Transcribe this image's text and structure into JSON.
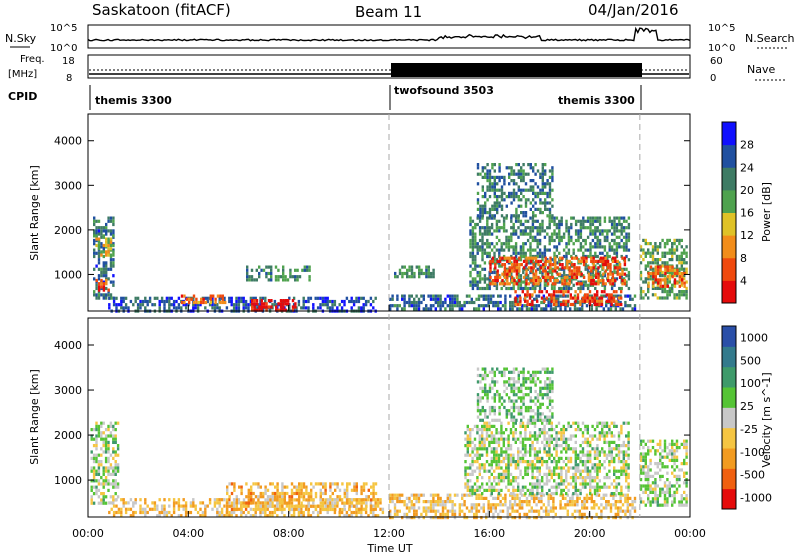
{
  "header": {
    "left": "Saskatoon (fitACF)",
    "center": "Beam 11",
    "right": "04/Jan/2016"
  },
  "top_panels": {
    "nsky_label": "N.Sky",
    "nsky_ticks": [
      "10^5",
      "10^0"
    ],
    "nsearch_label": "N.Search",
    "nsearch_ticks": [
      "10^5",
      "10^0"
    ],
    "freq_label": "Freq.",
    "freq_unit": "[MHz]",
    "freq_ticks": [
      "18",
      "8"
    ],
    "nave_label": "Nave",
    "nave_ticks": [
      "60",
      "0"
    ],
    "cpid_label": "CPID",
    "cpid_segments": [
      {
        "name": "themis 3300",
        "start_hour": 0
      },
      {
        "name": "twofsound 3503",
        "start_hour": 12
      },
      {
        "name": "themis 3300",
        "start_hour": 22
      }
    ]
  },
  "chart_data": [
    {
      "type": "heatmap",
      "panel": "power",
      "ylabel": "Slant Range [km]",
      "yticks": [
        "1000",
        "2000",
        "3000",
        "4000"
      ],
      "ylim": [
        180,
        4600
      ],
      "xlim": [
        0,
        24
      ],
      "colorbar_label": "Power [dB]",
      "colorbar_ticks": [
        "4",
        "8",
        "12",
        "16",
        "20",
        "24",
        "28"
      ],
      "colorbar_range": [
        0,
        30
      ],
      "colors": [
        "#1010ff",
        "#2050a0",
        "#3e7b64",
        "#4fa24e",
        "#dfc227",
        "#f28d1a",
        "#f0490d",
        "#e50b0b"
      ],
      "regions": [
        {
          "t0": 0.2,
          "t1": 1.0,
          "r0": 500,
          "r1": 2300,
          "level": 0.25
        },
        {
          "t0": 0.2,
          "t1": 1.0,
          "r0": 1400,
          "r1": 1900,
          "level": 0.55
        },
        {
          "t0": 0.3,
          "t1": 0.8,
          "r0": 650,
          "r1": 900,
          "level": 0.85
        },
        {
          "t0": 0.8,
          "t1": 11.5,
          "r0": 200,
          "r1": 500,
          "level": 0.2
        },
        {
          "t0": 6.5,
          "t1": 8.3,
          "r0": 200,
          "r1": 450,
          "level": 0.95
        },
        {
          "t0": 6.3,
          "t1": 8.8,
          "r0": 850,
          "r1": 1200,
          "level": 0.35
        },
        {
          "t0": 3.7,
          "t1": 5.5,
          "r0": 350,
          "r1": 550,
          "level": 0.75
        },
        {
          "t0": 12.2,
          "t1": 13.8,
          "r0": 950,
          "r1": 1200,
          "level": 0.35
        },
        {
          "t0": 12.0,
          "t1": 21.8,
          "r0": 200,
          "r1": 550,
          "level": 0.25
        },
        {
          "t0": 15.2,
          "t1": 21.6,
          "r0": 700,
          "r1": 2300,
          "level": 0.35
        },
        {
          "t0": 16.0,
          "t1": 21.4,
          "r0": 800,
          "r1": 1400,
          "level": 0.8
        },
        {
          "t0": 17.0,
          "t1": 21.3,
          "r0": 350,
          "r1": 650,
          "level": 0.85
        },
        {
          "t0": 15.5,
          "t1": 18.5,
          "r0": 2300,
          "r1": 3500,
          "level": 0.3
        },
        {
          "t0": 22.0,
          "t1": 23.9,
          "r0": 450,
          "r1": 1800,
          "level": 0.4
        },
        {
          "t0": 22.3,
          "t1": 23.8,
          "r0": 700,
          "r1": 1200,
          "level": 0.75
        }
      ]
    },
    {
      "type": "heatmap",
      "panel": "velocity",
      "ylabel": "Slant Range [km]",
      "yticks": [
        "1000",
        "2000",
        "3000",
        "4000"
      ],
      "ylim": [
        180,
        4600
      ],
      "xlim": [
        0,
        24
      ],
      "xlabel": "Time UT",
      "xticks": [
        "00:00",
        "04:00",
        "08:00",
        "12:00",
        "16:00",
        "20:00",
        "00:00"
      ],
      "colorbar_label": "Velocity [m s^-1]",
      "colorbar_ticks": [
        "1000",
        "500",
        "100",
        "25",
        "-25",
        "-100",
        "-500",
        "-1000"
      ],
      "colors": [
        "#2a4fa8",
        "#337a8c",
        "#3e9a6a",
        "#55c435",
        "#c8c8c8",
        "#f5c542",
        "#f29b20",
        "#f06010",
        "#e50b0b"
      ],
      "regions": [
        {
          "t0": 0.1,
          "t1": 1.2,
          "r0": 500,
          "r1": 2300,
          "level": 0.45
        },
        {
          "t0": 0.8,
          "t1": 11.8,
          "r0": 200,
          "r1": 600,
          "level": 0.63
        },
        {
          "t0": 5.5,
          "t1": 11.5,
          "r0": 350,
          "r1": 950,
          "level": 0.66
        },
        {
          "t0": 12.0,
          "t1": 21.8,
          "r0": 200,
          "r1": 700,
          "level": 0.62
        },
        {
          "t0": 15.0,
          "t1": 21.6,
          "r0": 700,
          "r1": 2300,
          "level": 0.46
        },
        {
          "t0": 15.5,
          "t1": 18.5,
          "r0": 2300,
          "r1": 3500,
          "level": 0.4
        },
        {
          "t0": 22.0,
          "t1": 23.9,
          "r0": 450,
          "r1": 1900,
          "level": 0.46
        }
      ]
    }
  ]
}
